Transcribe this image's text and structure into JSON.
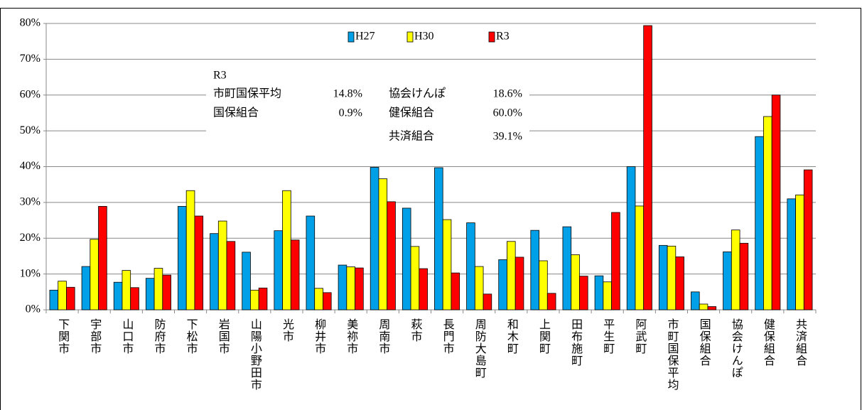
{
  "chart_data": {
    "type": "bar",
    "categories": [
      "下関市",
      "宇部市",
      "山口市",
      "防府市",
      "下松市",
      "岩国市",
      "山陽小野田市",
      "光市",
      "柳井市",
      "美祢市",
      "周南市",
      "萩市",
      "長門市",
      "周防大島町",
      "和木町",
      "上関町",
      "田布施町",
      "平生町",
      "阿武町",
      "市町国保平均",
      "国保組合",
      "協会けんぽ",
      "健保組合",
      "共済組合"
    ],
    "series": [
      {
        "name": "H27",
        "color": "#00a0e9",
        "values": [
          5.5,
          12.1,
          7.7,
          8.8,
          28.9,
          21.3,
          16.1,
          22.1,
          26.2,
          12.5,
          39.8,
          28.4,
          39.7,
          24.3,
          14.0,
          22.2,
          23.2,
          9.5,
          40.0,
          18.0,
          5.0,
          16.2,
          48.4,
          31.0
        ]
      },
      {
        "name": "H30",
        "color": "#ffff00",
        "values": [
          8.0,
          19.7,
          11.0,
          11.6,
          33.3,
          24.8,
          5.5,
          33.3,
          6.0,
          12.0,
          36.6,
          17.7,
          25.2,
          12.1,
          19.1,
          13.7,
          15.4,
          7.8,
          29.0,
          17.8,
          1.6,
          22.3,
          54.0,
          32.1
        ]
      },
      {
        "name": "R3",
        "color": "#ff0000",
        "values": [
          6.3,
          28.9,
          6.2,
          9.7,
          26.2,
          19.1,
          6.1,
          19.5,
          4.8,
          11.7,
          30.2,
          11.5,
          10.3,
          4.4,
          14.7,
          4.6,
          9.4,
          27.2,
          79.4,
          14.8,
          0.9,
          18.6,
          60.0,
          39.1
        ]
      }
    ],
    "ylim": [
      0,
      80
    ],
    "yticks": [
      {
        "value": 0,
        "label": "0%"
      },
      {
        "value": 10,
        "label": "10%"
      },
      {
        "value": 20,
        "label": "20%"
      },
      {
        "value": 30,
        "label": "30%"
      },
      {
        "value": 40,
        "label": "40%"
      },
      {
        "value": 50,
        "label": "50%"
      },
      {
        "value": 60,
        "label": "60%"
      },
      {
        "value": 70,
        "label": "70%"
      },
      {
        "value": 80,
        "label": "80%"
      }
    ],
    "grid": true,
    "legend": "top",
    "annotation": {
      "title": "R3",
      "items": [
        {
          "label": "市町国保平均",
          "value": "14.8%"
        },
        {
          "label": "協会けんぽ",
          "value": "18.6%"
        },
        {
          "label": "国保組合",
          "value": "0.9%"
        },
        {
          "label": "健保組合",
          "value": "60.0%"
        },
        {
          "label": "共済組合",
          "value": "39.1%"
        }
      ]
    }
  }
}
